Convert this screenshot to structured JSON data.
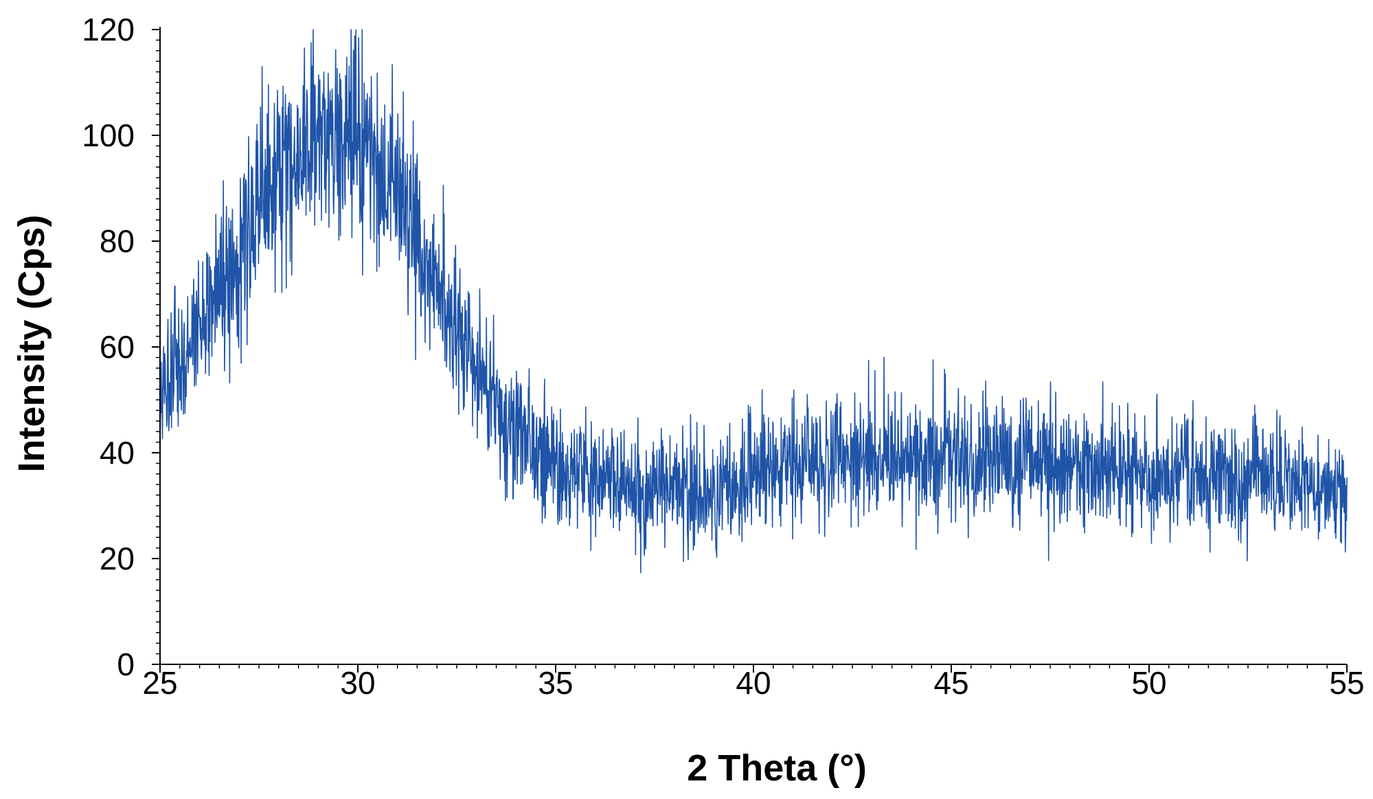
{
  "chart_data": {
    "type": "line",
    "title": "",
    "xlabel": "2 Theta (°)",
    "ylabel": "Intensity (Cps)",
    "xlim": [
      25,
      55
    ],
    "ylim": [
      0,
      120
    ],
    "x_ticks": [
      25,
      30,
      35,
      40,
      45,
      50,
      55
    ],
    "y_ticks": [
      0,
      20,
      40,
      60,
      80,
      100,
      120
    ],
    "x_minor_step": 0.5,
    "y_minor_step": 2,
    "grid": false,
    "legend": "none",
    "line_color": "#1f54a8",
    "series": [
      {
        "x": [
          25,
          25.5,
          26,
          26.5,
          27,
          27.5,
          28,
          28.5,
          29,
          29.5,
          30,
          30.5,
          31,
          31.5,
          32,
          32.5,
          33,
          33.5,
          34,
          34.5,
          35,
          35.5,
          36,
          36.5,
          37,
          37.5,
          38,
          38.5,
          39,
          39.5,
          40,
          40.5,
          41,
          41.5,
          42,
          42.5,
          43,
          43.5,
          44,
          44.5,
          45,
          45.5,
          46,
          46.5,
          47,
          47.5,
          48,
          48.5,
          49,
          49.5,
          50,
          50.5,
          51,
          51.5,
          52,
          52.5,
          53,
          53.5,
          54,
          54.5,
          55
        ],
        "y": [
          50,
          56,
          63,
          71,
          78,
          86,
          92,
          97,
          100,
          101,
          98,
          94,
          88,
          79,
          70,
          63,
          56,
          49,
          44,
          41,
          38,
          36,
          35,
          34,
          33,
          33,
          33,
          33,
          33,
          34,
          35,
          36,
          37,
          38,
          39,
          39,
          39,
          39,
          39,
          39,
          39,
          39,
          39,
          38,
          38,
          38,
          38,
          37,
          37,
          37,
          36,
          36,
          36,
          35,
          35,
          35,
          35,
          34,
          34,
          33,
          32
        ]
      }
    ]
  }
}
